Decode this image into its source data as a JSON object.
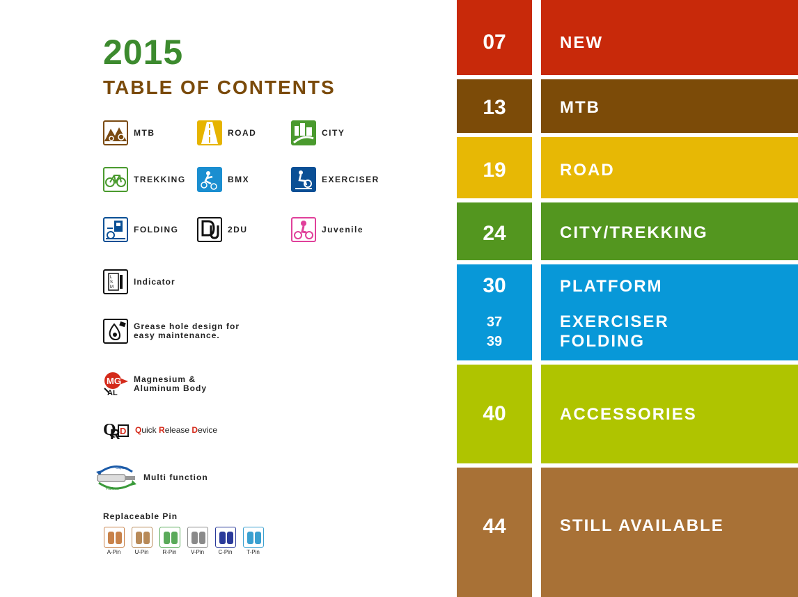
{
  "header": {
    "year": "2015",
    "title": "TABLE OF CONTENTS"
  },
  "categories": [
    {
      "label": "MTB",
      "icon": "mountain-icon",
      "color": "#7a4a12"
    },
    {
      "label": "ROAD",
      "icon": "road-icon",
      "color": "#e6b400"
    },
    {
      "label": "CITY",
      "icon": "city-icon",
      "color": "#4a9a2e"
    },
    {
      "label": "TREKKING",
      "icon": "trekking-bike-icon",
      "color": "#4a9a2e"
    },
    {
      "label": "BMX",
      "icon": "bmx-rider-icon",
      "color": "#1a8ed0"
    },
    {
      "label": "EXERCISER",
      "icon": "exercise-bike-icon",
      "color": "#0a4f95"
    },
    {
      "label": "FOLDING",
      "icon": "folding-bike-icon",
      "color": "#0a4f95"
    },
    {
      "label": "2DU",
      "icon": "2du-logo-icon",
      "color": "#111111"
    },
    {
      "label": "Juvenile",
      "icon": "child-bike-icon",
      "color": "#e0409a"
    }
  ],
  "features": {
    "indicator": "Indicator",
    "grease_line1": "Grease hole design for",
    "grease_line2": "easy maintenance.",
    "mg_line1": "Magnesium &",
    "mg_line2": "Aluminum Body",
    "qrd_q": "Q",
    "qrd_uick": "uick ",
    "qrd_r": "R",
    "qrd_elease": "elease ",
    "qrd_d": "D",
    "qrd_evice": "evice",
    "multi": "Multi function",
    "multi_top": "Clipless",
    "multi_bottom": "Platform"
  },
  "pins": {
    "title": "Replaceable Pin",
    "items": [
      {
        "name": "A-Pin",
        "color": "#c8824a"
      },
      {
        "name": "U-Pin",
        "color": "#b88a58"
      },
      {
        "name": "R-Pin",
        "color": "#5aaa5a"
      },
      {
        "name": "V-Pin",
        "color": "#8a8a8a"
      },
      {
        "name": "C-Pin",
        "color": "#2a3a9a"
      },
      {
        "name": "T-Pin",
        "color": "#3aa0d0"
      }
    ]
  },
  "sections": [
    {
      "page": "07",
      "title": "NEW",
      "color": "#c8290a"
    },
    {
      "page": "13",
      "title": "MTB",
      "color": "#7c4b08"
    },
    {
      "page": "19",
      "title": "ROAD",
      "color": "#e7b805"
    },
    {
      "page": "24",
      "title": "CITY/TREKKING",
      "color": "#53961f"
    },
    {
      "page": "30",
      "title": "PLATFORM",
      "color": "#0898d8",
      "extra": [
        {
          "page": "37",
          "title": "EXERCISER"
        },
        {
          "page": "39",
          "title": "FOLDING"
        }
      ]
    },
    {
      "page": "40",
      "title": "ACCESSORIES",
      "color": "#afc400"
    },
    {
      "page": "44",
      "title": "STILL AVAILABLE",
      "color": "#a87136"
    }
  ]
}
